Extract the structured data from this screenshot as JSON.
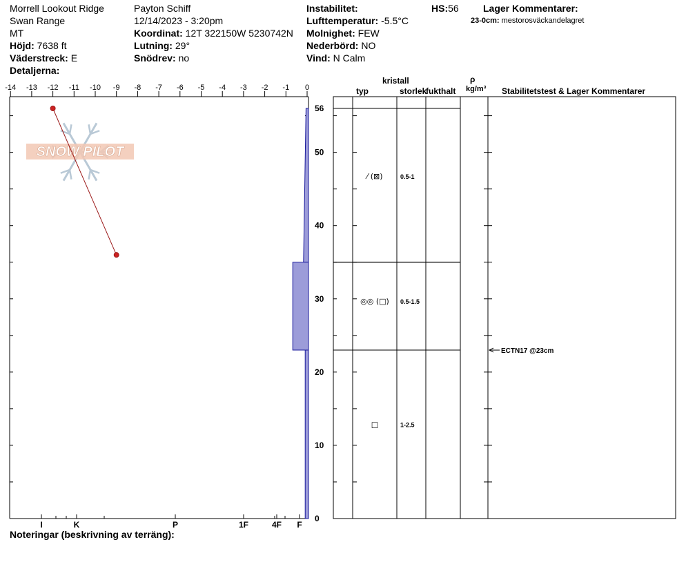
{
  "header": {
    "location": "Morrell Lookout Ridge",
    "range": "Swan Range",
    "state": "MT",
    "elevation_label": "Höjd:",
    "elevation_value": "7638 ft",
    "aspect_label": "Väderstreck:",
    "aspect_value": "E",
    "details_label": "Detaljerna:",
    "observer": "Payton Schiff",
    "datetime": "12/14/2023 - 3:20pm",
    "coord_label": "Koordinat:",
    "coord_value": "12T 322150W 5230742N",
    "slope_label": "Lutning:",
    "slope_value": "29°",
    "drift_label": "Snödrev:",
    "drift_value": "no",
    "instability_label": "Instabilitet:",
    "airtemp_label": "Lufttemperatur:",
    "airtemp_value": "-5.5°C",
    "sky_label": "Molnighet:",
    "sky_value": "FEW",
    "precip_label": "Nederbörd:",
    "precip_value": "NO",
    "wind_label": "Vind:",
    "wind_value": "N Calm",
    "hs_label": "HS:",
    "hs_value": "56",
    "layer_comments_title": "Lager Kommentarer:",
    "layer_comment_range": "23-0cm:",
    "layer_comment_text": "mestorosväckandelagret"
  },
  "table_headers": {
    "kristall": "kristall",
    "typ": "typ",
    "storlek": "storlek",
    "fukthalt": "fukthalt",
    "rho": "ρ",
    "density_unit": "kg/m³",
    "stability": "Stabilitetstest & Lager Kommentarer"
  },
  "footer": {
    "notes_label": "Noteringar (beskrivning av terräng):"
  },
  "watermark": "SNOW PILOT",
  "colors": {
    "hardness_fill": "#9c9cd9",
    "hardness_stroke": "#1a1a9c",
    "temp_line": "#9c1a1a",
    "temp_point": "#cc2222"
  },
  "chart_data": {
    "type": "snow_profile",
    "snow_depth_cm": 56,
    "depth_axis": {
      "min": 0,
      "max": 56,
      "ticks": [
        0,
        10,
        20,
        30,
        40,
        50,
        56
      ]
    },
    "temperature_axis": {
      "min": -14,
      "max": 0,
      "ticks": [
        -14,
        -13,
        -12,
        -11,
        -10,
        -9,
        -8,
        -7,
        -6,
        -5,
        -4,
        -3,
        -2,
        -1,
        0
      ]
    },
    "hardness_axis": {
      "labels": [
        "I",
        "K",
        "P",
        "1F",
        "4F",
        "F"
      ]
    },
    "temperature_profile": [
      {
        "depth": 56,
        "temp": -12
      },
      {
        "depth": 36,
        "temp": -9
      }
    ],
    "layers": [
      {
        "top": 56,
        "bottom": 35,
        "hardness_top": 0.3,
        "hardness_bottom": 0.6,
        "grain": "⁄ (⊠)",
        "size": "0.5-1"
      },
      {
        "top": 35,
        "bottom": 23,
        "hardness_top": 1.9,
        "hardness_bottom": 1.9,
        "grain": "◎◎ (□)",
        "size": "0.5-1.5"
      },
      {
        "top": 23,
        "bottom": 0,
        "hardness_top": 0.4,
        "hardness_bottom": 0.4,
        "grain": "□",
        "size": "1-2.5"
      }
    ],
    "stability_tests": [
      {
        "depth": 23,
        "label": "ECTN17 @23cm"
      }
    ]
  }
}
